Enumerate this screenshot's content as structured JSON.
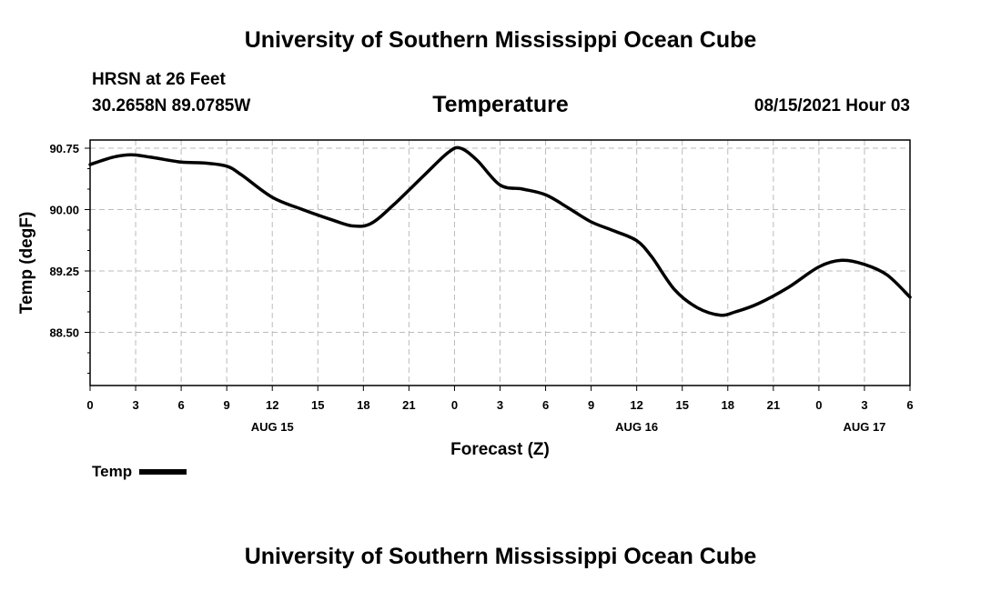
{
  "header": {
    "top_title": "University of Southern Mississippi Ocean Cube",
    "station": "HRSN at 26 Feet",
    "coords": "30.2658N  89.0785W",
    "chart_title": "Temperature",
    "datetime": "08/15/2021 Hour 03"
  },
  "footer": {
    "bottom_title": "University of Southern Mississippi Ocean Cube"
  },
  "legend": {
    "label": "Temp"
  },
  "colors": {
    "line": "#000000",
    "grid": "#bbbbbb"
  },
  "chart_data": {
    "type": "line",
    "title": "Temperature",
    "xlabel": "Forecast (Z)",
    "ylabel": "Temp (degF)",
    "ylim": [
      87.85,
      90.85
    ],
    "xlim": [
      0,
      54
    ],
    "y_ticks": [
      "88.50",
      "89.25",
      "90.00",
      "90.75"
    ],
    "y_tick_values": [
      88.5,
      89.25,
      90.0,
      90.75
    ],
    "x_tick_values": [
      0,
      3,
      6,
      9,
      12,
      15,
      18,
      21,
      24,
      27,
      30,
      33,
      36,
      39,
      42,
      45,
      48,
      51,
      54
    ],
    "x_tick_labels": [
      "0",
      "3",
      "6",
      "9",
      "12",
      "15",
      "18",
      "21",
      "0",
      "3",
      "6",
      "9",
      "12",
      "15",
      "18",
      "21",
      "0",
      "3",
      "6"
    ],
    "date_labels": [
      {
        "hour": 12,
        "label": "AUG 15"
      },
      {
        "hour": 36,
        "label": "AUG 16"
      },
      {
        "hour": 51,
        "label": "AUG 17"
      }
    ],
    "grid": true,
    "series": [
      {
        "name": "Temp",
        "x": [
          0,
          1.5,
          2.7,
          4,
          6,
          7.5,
          9,
          10,
          12,
          14,
          16,
          17.3,
          18.5,
          20,
          22,
          23.6,
          24.4,
          25.5,
          27,
          28.5,
          30,
          31.5,
          33,
          34.5,
          36,
          37,
          38.5,
          40,
          41.5,
          42.5,
          44,
          46,
          48,
          49.5,
          51,
          52.5,
          54
        ],
        "values": [
          90.55,
          90.64,
          90.67,
          90.64,
          90.58,
          90.57,
          90.53,
          90.42,
          90.15,
          90.0,
          89.87,
          89.8,
          89.83,
          90.06,
          90.42,
          90.7,
          90.75,
          90.6,
          90.3,
          90.25,
          90.18,
          90.02,
          89.85,
          89.74,
          89.62,
          89.42,
          89.02,
          88.8,
          88.71,
          88.75,
          88.85,
          89.05,
          89.3,
          89.38,
          89.33,
          89.2,
          88.93
        ]
      }
    ]
  }
}
